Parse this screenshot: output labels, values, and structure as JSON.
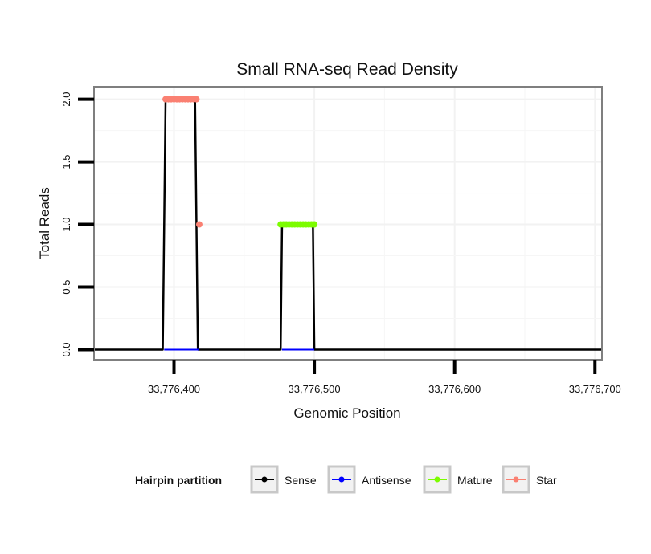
{
  "chart_data": {
    "type": "line",
    "title": "Small RNA-seq Read Density",
    "xlabel": "Genomic Position",
    "ylabel": "Total Reads",
    "xlim": [
      33776343,
      33776705
    ],
    "ylim": [
      -0.08,
      2.1
    ],
    "x_ticks": [
      33776400,
      33776500,
      33776600,
      33776700
    ],
    "x_tick_labels": [
      "33,776,400",
      "33,776,500",
      "33,776,600",
      "33,776,700"
    ],
    "y_ticks": [
      0,
      0.5,
      1,
      1.5,
      2
    ],
    "y_tick_labels": [
      "0.0",
      "0.5",
      "1.0",
      "1.5",
      "2.0"
    ],
    "grid": true,
    "legend": {
      "title": "Hairpin partition",
      "position": "bottom",
      "entries": [
        {
          "name": "Sense",
          "color": "#000000"
        },
        {
          "name": "Antisense",
          "color": "#0000ff"
        },
        {
          "name": "Mature",
          "color": "#7cfc00"
        },
        {
          "name": "Star",
          "color": "#fa8072"
        }
      ]
    },
    "series": [
      {
        "name": "Sense",
        "color": "#000000",
        "style": "line",
        "x": [
          33776343,
          33776392,
          33776393,
          33776394,
          33776415,
          33776417,
          33776476,
          33776477,
          33776499,
          33776500,
          33776705
        ],
        "y": [
          0,
          0,
          1,
          2,
          2,
          0,
          0,
          1,
          1,
          0,
          0
        ]
      },
      {
        "name": "Antisense",
        "color": "#0000ff",
        "style": "line",
        "x": [
          33776393,
          33776418,
          33776477,
          33776500
        ],
        "y": [
          0,
          0,
          0,
          0
        ],
        "segments": [
          [
            0,
            1
          ],
          [
            2,
            3
          ]
        ]
      },
      {
        "name": "Mature",
        "color": "#7cfc00",
        "style": "points",
        "x": [
          33776476,
          33776478,
          33776480,
          33776482,
          33776484,
          33776486,
          33776488,
          33776490,
          33776492,
          33776494,
          33776496,
          33776498,
          33776500
        ],
        "y": [
          1,
          1,
          1,
          1,
          1,
          1,
          1,
          1,
          1,
          1,
          1,
          1,
          1
        ]
      },
      {
        "name": "Star",
        "color": "#fa8072",
        "style": "points",
        "x": [
          33776394,
          33776396,
          33776398,
          33776400,
          33776402,
          33776404,
          33776406,
          33776408,
          33776410,
          33776412,
          33776414,
          33776416,
          33776418
        ],
        "y": [
          2,
          2,
          2,
          2,
          2,
          2,
          2,
          2,
          2,
          2,
          2,
          2,
          1
        ]
      }
    ]
  }
}
